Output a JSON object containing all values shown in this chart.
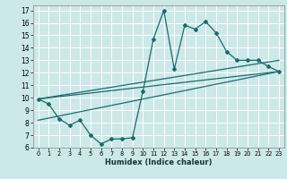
{
  "xlabel": "Humidex (Indice chaleur)",
  "xlim": [
    -0.5,
    23.5
  ],
  "ylim": [
    6,
    17.4
  ],
  "xticks": [
    0,
    1,
    2,
    3,
    4,
    5,
    6,
    7,
    8,
    9,
    10,
    11,
    12,
    13,
    14,
    15,
    16,
    17,
    18,
    19,
    20,
    21,
    22,
    23
  ],
  "yticks": [
    6,
    7,
    8,
    9,
    10,
    11,
    12,
    13,
    14,
    15,
    16,
    17
  ],
  "bg_color": "#cce8e8",
  "line_color": "#1a6b6b",
  "grid_color": "#ffffff",
  "main_line_x": [
    0,
    1,
    2,
    3,
    4,
    5,
    6,
    7,
    8,
    9,
    10,
    11,
    12,
    13,
    14,
    15,
    16,
    17,
    18,
    19,
    20,
    21,
    22,
    23
  ],
  "main_line_y": [
    9.9,
    9.5,
    8.3,
    7.8,
    8.2,
    7.0,
    6.3,
    6.7,
    6.7,
    6.8,
    10.5,
    14.7,
    17.0,
    12.3,
    15.8,
    15.5,
    16.1,
    15.2,
    13.7,
    13.0,
    13.0,
    13.0,
    12.5,
    12.1
  ],
  "trend1_x": [
    0,
    23
  ],
  "trend1_y": [
    9.9,
    13.0
  ],
  "trend2_x": [
    0,
    23
  ],
  "trend2_y": [
    9.9,
    12.1
  ],
  "trend3_x": [
    0,
    23
  ],
  "trend3_y": [
    8.2,
    12.1
  ]
}
